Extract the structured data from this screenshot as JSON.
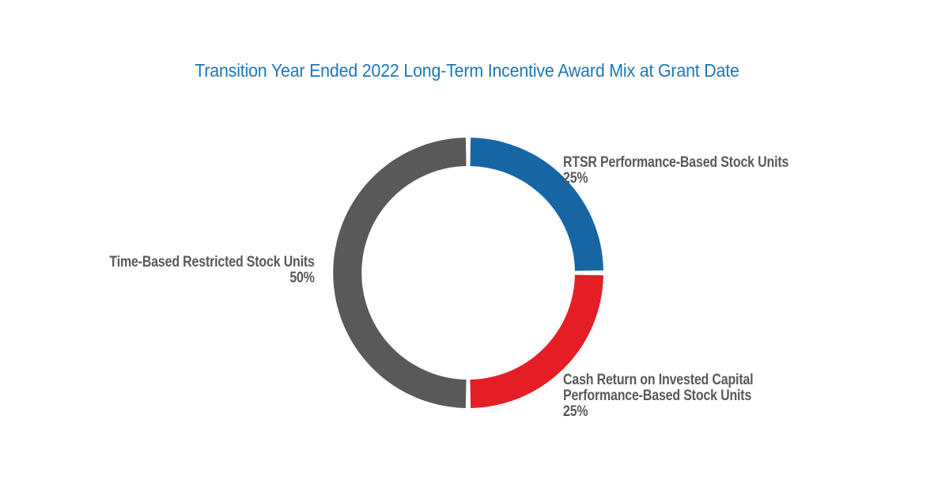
{
  "title": {
    "text": "Transition Year Ended 2022 Long-Term Incentive Award Mix at Grant Date",
    "color": "#1E76B8"
  },
  "chart_data": {
    "type": "pie",
    "variant": "donut",
    "title": "Transition Year Ended 2022 Long-Term Incentive Award Mix at Grant Date",
    "start_angle_deg": 0,
    "direction": "clockwise",
    "total": 100,
    "legend_position": "none",
    "background": "#FFFFFF",
    "label_color": "#58595B",
    "gap_between_slices_deg": 2.1,
    "slices": [
      {
        "name": "RTSR Performance-Based Stock Units",
        "value": 25,
        "percent_label": "25%",
        "color": "#1766A4",
        "label_lines": [
          "RTSR Performance-Based Stock Units",
          "25%"
        ],
        "label_side": "right-top"
      },
      {
        "name": "Cash Return on Invested Capital Performance-Based Stock Units",
        "value": 25,
        "percent_label": "25%",
        "color": "#E51E25",
        "label_lines": [
          "Cash Return on Invested Capital",
          "Performance-Based Stock Units",
          "25%"
        ],
        "label_side": "right-bottom"
      },
      {
        "name": "Time-Based Restricted Stock Units",
        "value": 50,
        "percent_label": "50%",
        "color": "#58595B",
        "label_lines": [
          "Time-Based Restricted Stock Units",
          "50%"
        ],
        "label_side": "left"
      }
    ]
  }
}
